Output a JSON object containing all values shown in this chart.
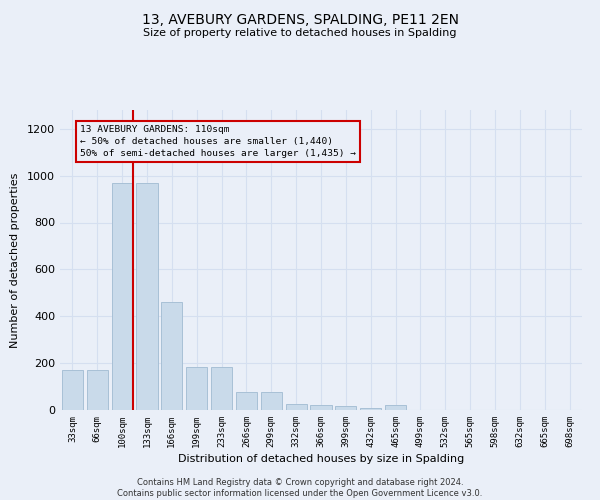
{
  "title1": "13, AVEBURY GARDENS, SPALDING, PE11 2EN",
  "title2": "Size of property relative to detached houses in Spalding",
  "xlabel": "Distribution of detached houses by size in Spalding",
  "ylabel": "Number of detached properties",
  "footnote": "Contains HM Land Registry data © Crown copyright and database right 2024.\nContains public sector information licensed under the Open Government Licence v3.0.",
  "bar_color": "#c9daea",
  "bar_edgecolor": "#a8c0d6",
  "grid_color": "#d5dff0",
  "categories": [
    "33sqm",
    "66sqm",
    "100sqm",
    "133sqm",
    "166sqm",
    "199sqm",
    "233sqm",
    "266sqm",
    "299sqm",
    "332sqm",
    "366sqm",
    "399sqm",
    "432sqm",
    "465sqm",
    "499sqm",
    "532sqm",
    "565sqm",
    "598sqm",
    "632sqm",
    "665sqm",
    "698sqm"
  ],
  "values": [
    170,
    170,
    970,
    970,
    460,
    185,
    185,
    75,
    75,
    25,
    20,
    15,
    10,
    20,
    0,
    0,
    0,
    0,
    0,
    0,
    0
  ],
  "red_line_index": 2,
  "marker_label": "13 AVEBURY GARDENS: 110sqm",
  "annotation_line1": "← 50% of detached houses are smaller (1,440)",
  "annotation_line2": "50% of semi-detached houses are larger (1,435) →",
  "ylim": [
    0,
    1280
  ],
  "yticks": [
    0,
    200,
    400,
    600,
    800,
    1000,
    1200
  ],
  "marker_color": "#cc0000",
  "annotation_box_edgecolor": "#cc0000",
  "bg_color": "#eaeff8"
}
